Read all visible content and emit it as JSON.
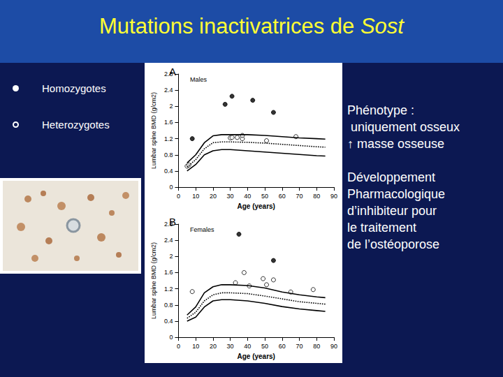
{
  "title_parts": [
    {
      "text": "Mutations inactivatrices de "
    },
    {
      "text": "Sost",
      "style": "italic"
    }
  ],
  "side_text": [
    "Phénotype :",
    " uniquement osseux",
    "↑ masse osseuse",
    "",
    "Développement",
    "Pharmacologique",
    "d’inhibiteur pour",
    "le traitement",
    "de l’ostéoporose"
  ],
  "chart_data": [
    {
      "type": "scatter",
      "panel": "A",
      "title": "Males",
      "x_label": "Age (years)",
      "y_label": "Lumbar spine BMD (g/cm2)",
      "xlim": [
        0,
        90
      ],
      "xticks": [
        0,
        10,
        20,
        30,
        40,
        50,
        60,
        70,
        80,
        90
      ],
      "ylim": [
        0,
        2.8
      ],
      "yticks": [
        0,
        0.4,
        0.8,
        1.2,
        1.6,
        2,
        2.4,
        2.8
      ],
      "grid": false,
      "series": [
        {
          "type": "line",
          "line_style": "solid",
          "color": "#000000",
          "x": [
            5,
            10,
            15,
            20,
            25,
            30,
            40,
            50,
            60,
            70,
            80,
            85
          ],
          "values": [
            0.6,
            0.8,
            1.1,
            1.27,
            1.3,
            1.3,
            1.3,
            1.28,
            1.25,
            1.22,
            1.2,
            1.19
          ]
        },
        {
          "type": "line",
          "line_style": "dotted",
          "color": "#000000",
          "x": [
            5,
            10,
            15,
            20,
            25,
            30,
            40,
            50,
            60,
            70,
            80,
            85
          ],
          "values": [
            0.5,
            0.68,
            0.95,
            1.1,
            1.12,
            1.12,
            1.11,
            1.09,
            1.06,
            1.03,
            1.0,
            0.99
          ]
        },
        {
          "type": "line",
          "line_style": "solid",
          "color": "#000000",
          "x": [
            5,
            10,
            15,
            20,
            25,
            30,
            40,
            50,
            60,
            70,
            80,
            85
          ],
          "values": [
            0.4,
            0.56,
            0.8,
            0.9,
            0.93,
            0.93,
            0.9,
            0.87,
            0.84,
            0.81,
            0.78,
            0.77
          ]
        },
        {
          "type": "scatter",
          "name": "Homozygotes",
          "marker": "filled",
          "color": "#000000",
          "x": [
            8,
            27,
            31,
            43,
            55
          ],
          "values": [
            1.2,
            2.05,
            2.25,
            2.15,
            1.85
          ]
        },
        {
          "type": "scatter",
          "name": "Heterozygotes",
          "marker": "open",
          "color": "#000000",
          "x": [
            5,
            6,
            30,
            31,
            34,
            37,
            37,
            51,
            68
          ],
          "values": [
            0.52,
            0.55,
            1.22,
            1.23,
            1.23,
            1.2,
            1.28,
            1.15,
            1.25
          ]
        }
      ]
    },
    {
      "type": "scatter",
      "panel": "B",
      "title": "Females",
      "x_label": "Age (years)",
      "y_label": "Lumbar spine BMD (g/cm2)",
      "xlim": [
        0,
        90
      ],
      "xticks": [
        0,
        10,
        20,
        30,
        40,
        50,
        60,
        70,
        80,
        90
      ],
      "ylim": [
        0,
        2.8
      ],
      "yticks": [
        0,
        0.4,
        0.8,
        1.2,
        1.6,
        2,
        2.4,
        2.8
      ],
      "grid": false,
      "series": [
        {
          "type": "line",
          "line_style": "solid",
          "color": "#000000",
          "x": [
            5,
            10,
            15,
            20,
            25,
            30,
            40,
            50,
            60,
            70,
            80,
            85
          ],
          "values": [
            0.55,
            0.75,
            1.1,
            1.25,
            1.3,
            1.3,
            1.28,
            1.22,
            1.12,
            1.05,
            1.0,
            0.98
          ]
        },
        {
          "type": "line",
          "line_style": "dotted",
          "color": "#000000",
          "x": [
            5,
            10,
            15,
            20,
            25,
            30,
            40,
            50,
            60,
            70,
            80,
            85
          ],
          "values": [
            0.47,
            0.62,
            0.9,
            1.05,
            1.1,
            1.1,
            1.08,
            1.02,
            0.95,
            0.88,
            0.84,
            0.82
          ]
        },
        {
          "type": "line",
          "line_style": "solid",
          "color": "#000000",
          "x": [
            5,
            10,
            15,
            20,
            25,
            30,
            40,
            50,
            60,
            70,
            80,
            85
          ],
          "values": [
            0.4,
            0.5,
            0.75,
            0.9,
            0.93,
            0.93,
            0.9,
            0.84,
            0.76,
            0.7,
            0.66,
            0.64
          ]
        },
        {
          "type": "scatter",
          "name": "Homozygotes",
          "marker": "filled",
          "color": "#000000",
          "x": [
            35,
            55
          ],
          "values": [
            2.55,
            1.9
          ]
        },
        {
          "type": "scatter",
          "name": "Heterozygotes",
          "marker": "open",
          "color": "#000000",
          "x": [
            8,
            33,
            38,
            41,
            49,
            51,
            55,
            65,
            78
          ],
          "values": [
            1.13,
            1.35,
            1.6,
            1.27,
            1.45,
            1.3,
            1.42,
            1.12,
            1.18
          ]
        }
      ]
    }
  ]
}
